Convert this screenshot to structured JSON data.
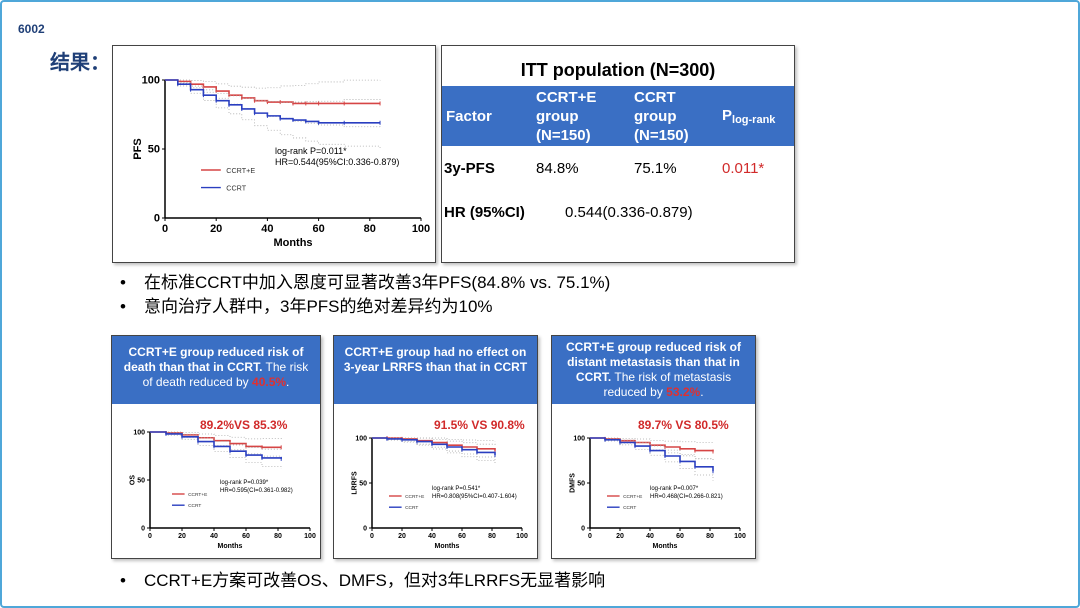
{
  "slide_number": "6002",
  "heading": "结果：",
  "itt": {
    "title": "ITT population (N=300)",
    "headers": [
      "Factor",
      "CCRT+E group (N=150)",
      "CCRT group (N=150)",
      "P"
    ],
    "p_sub": "log-rank",
    "row_pfs": {
      "label": "3y-PFS",
      "a": "84.8%",
      "b": "75.1%",
      "p": "0.011*"
    },
    "row_hr": {
      "label": "HR (95%CI)",
      "value": "0.544(0.336-0.879)"
    }
  },
  "bullets_top": [
    "在标准CCRT中加入恩度可显著改善3年PFS(84.8% vs. 75.1%)",
    "意向治疗人群中，3年PFS的绝对差异约为10%"
  ],
  "bullet_bottom": "CCRT+E方案可改善OS、DMFS，但对3年LRRFS无显著影响",
  "card_os": {
    "line1": "CCRT+E group reduced risk of death than that in CCRT.",
    "line2": " The risk of death reduced by ",
    "pct": "40.5%",
    "tail": ".",
    "compare": "89.2%VS 85.3%"
  },
  "card_lrrfs": {
    "line1": "CCRT+E group had no effect on 3-year LRRFS than that in CCRT",
    "compare": "91.5% VS 90.8%"
  },
  "card_dmfs": {
    "line1": "CCRT+E group reduced risk of distant metastasis than that in CCRT.",
    "line2": " The risk of metastasis reduced by ",
    "pct": "53.2%",
    "tail": ".",
    "compare": "89.7% VS 80.5%"
  },
  "chart_data": [
    {
      "type": "line",
      "ylabel": "PFS",
      "xlabel": "Months",
      "xlim": [
        0,
        100
      ],
      "ylim": [
        0,
        100
      ],
      "xticks": [
        0,
        20,
        40,
        60,
        80,
        100
      ],
      "yticks": [
        0,
        50,
        100
      ],
      "annotation": [
        "log-rank P=0.011*",
        "HR=0.544(95%CI:0.336-0.879)"
      ],
      "series": [
        {
          "name": "CCRT+E",
          "color": "#d64545",
          "x": [
            0,
            5,
            10,
            15,
            20,
            25,
            30,
            35,
            40,
            45,
            50,
            55,
            60,
            70,
            84
          ],
          "y": [
            100,
            99,
            97,
            95,
            92,
            89,
            87,
            85,
            84,
            84,
            83,
            83,
            83,
            83,
            83
          ]
        },
        {
          "name": "CCRT",
          "color": "#2a3fc0",
          "x": [
            0,
            5,
            10,
            15,
            20,
            25,
            30,
            35,
            40,
            45,
            50,
            55,
            60,
            70,
            84
          ],
          "y": [
            100,
            97,
            93,
            89,
            85,
            82,
            79,
            76,
            74,
            72,
            71,
            70,
            69,
            69,
            69
          ]
        }
      ]
    },
    {
      "type": "line",
      "ylabel": "OS",
      "xlabel": "Months",
      "xlim": [
        0,
        100
      ],
      "ylim": [
        0,
        100
      ],
      "xticks": [
        0,
        20,
        40,
        60,
        80,
        100
      ],
      "yticks": [
        0,
        50,
        100
      ],
      "annotation": [
        "log-rank P=0.039*",
        "HR=0.595(CI=0.361-0.982)"
      ],
      "series": [
        {
          "name": "CCRT+E",
          "color": "#d64545",
          "x": [
            0,
            10,
            20,
            30,
            40,
            50,
            60,
            70,
            82
          ],
          "y": [
            100,
            99,
            97,
            94,
            91,
            88,
            85,
            84,
            84
          ]
        },
        {
          "name": "CCRT",
          "color": "#2a3fc0",
          "x": [
            0,
            10,
            20,
            30,
            40,
            50,
            60,
            70,
            82
          ],
          "y": [
            100,
            98,
            95,
            90,
            85,
            80,
            76,
            73,
            72
          ]
        }
      ]
    },
    {
      "type": "line",
      "ylabel": "LRRFS",
      "xlabel": "Months",
      "xlim": [
        0,
        100
      ],
      "ylim": [
        0,
        100
      ],
      "xticks": [
        0,
        20,
        40,
        60,
        80,
        100
      ],
      "yticks": [
        0,
        50,
        100
      ],
      "annotation": [
        "log-rank P=0.541*",
        "HR=0.808(95%CI=0.407-1.604)"
      ],
      "series": [
        {
          "name": "CCRT+E",
          "color": "#d64545",
          "x": [
            0,
            10,
            20,
            30,
            40,
            50,
            60,
            70,
            82
          ],
          "y": [
            100,
            100,
            99,
            97,
            95,
            92,
            90,
            88,
            86
          ]
        },
        {
          "name": "CCRT",
          "color": "#2a3fc0",
          "x": [
            0,
            10,
            20,
            30,
            40,
            50,
            60,
            70,
            82
          ],
          "y": [
            100,
            99,
            98,
            96,
            93,
            90,
            87,
            84,
            81
          ]
        }
      ]
    },
    {
      "type": "line",
      "ylabel": "DMFS",
      "xlabel": "Months",
      "xlim": [
        0,
        100
      ],
      "ylim": [
        0,
        100
      ],
      "xticks": [
        0,
        20,
        40,
        60,
        80,
        100
      ],
      "yticks": [
        0,
        50,
        100
      ],
      "annotation": [
        "log-rank P=0.007*",
        "HR=0.468(CI=0.266-0.821)"
      ],
      "series": [
        {
          "name": "CCRT+E",
          "color": "#d64545",
          "x": [
            0,
            10,
            20,
            30,
            40,
            50,
            60,
            70,
            82
          ],
          "y": [
            100,
            99,
            97,
            95,
            92,
            90,
            88,
            86,
            85
          ]
        },
        {
          "name": "CCRT",
          "color": "#2a3fc0",
          "x": [
            0,
            10,
            20,
            30,
            40,
            50,
            60,
            70,
            82
          ],
          "y": [
            100,
            98,
            95,
            91,
            86,
            80,
            74,
            68,
            63
          ]
        }
      ]
    }
  ]
}
